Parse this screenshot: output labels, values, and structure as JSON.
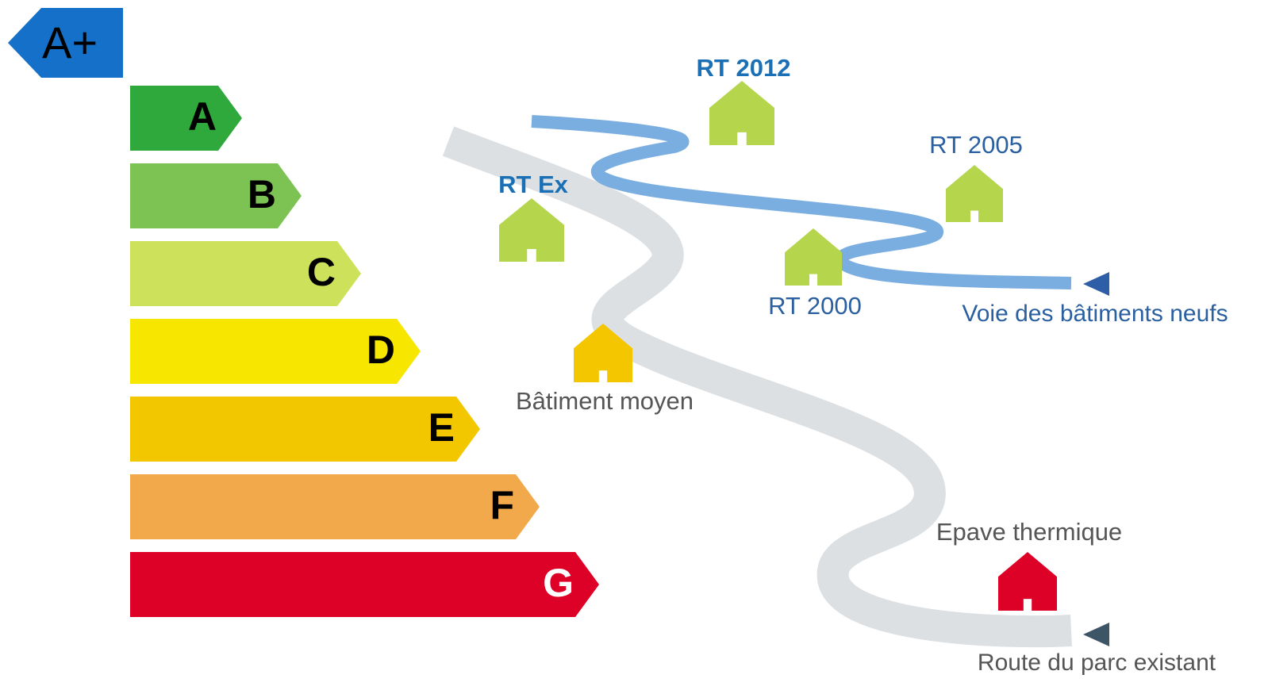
{
  "badge": {
    "label": "A+",
    "color": "#1470c8"
  },
  "classes": [
    {
      "label": "A",
      "color": "#2fa83c"
    },
    {
      "label": "B",
      "color": "#7cc354"
    },
    {
      "label": "C",
      "color": "#cde25a"
    },
    {
      "label": "D",
      "color": "#f6e600"
    },
    {
      "label": "E",
      "color": "#f3c700"
    },
    {
      "label": "F",
      "color": "#f1a94b"
    },
    {
      "label": "G",
      "color": "#dd0027"
    }
  ],
  "houses": [
    {
      "label": "RT 2012",
      "color": "#b4d54c"
    },
    {
      "label": "RT Ex",
      "color": "#b4d54c"
    },
    {
      "label": "RT 2005",
      "color": "#b4d54c"
    },
    {
      "label": "RT 2000",
      "color": "#b4d54c"
    },
    {
      "label": "Bâtiment moyen",
      "color": "#f4c600"
    },
    {
      "label": "Epave thermique",
      "color": "#dd0027"
    }
  ],
  "roads": [
    {
      "label": "Voie des bâtiments neufs",
      "color": "#7aaee0"
    },
    {
      "label": "Route du parc existant",
      "color": "#dde0e3"
    }
  ]
}
